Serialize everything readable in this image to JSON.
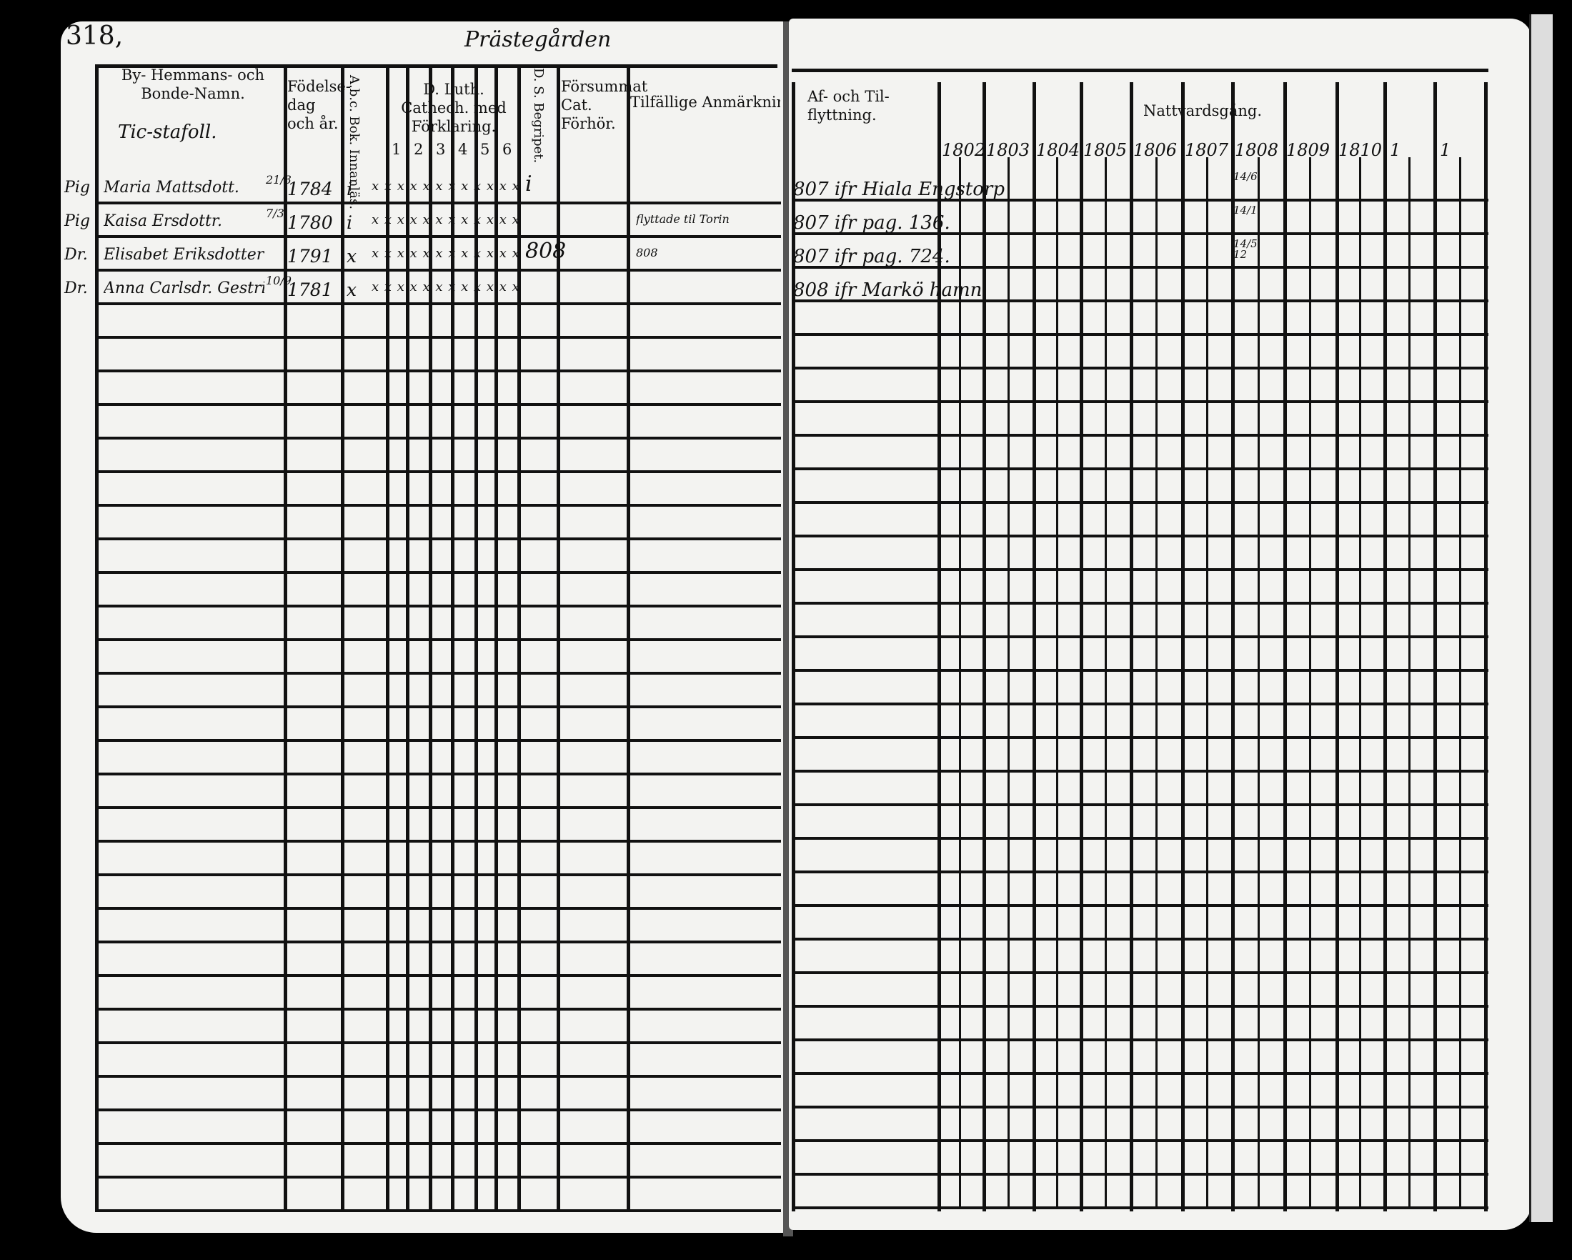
{
  "page_number": "318,",
  "place_heading": "Prästegården",
  "left": {
    "headers": {
      "name": "By- Hemmans- och Bonde-Namn.",
      "birth": "Födelse-dag och år.",
      "abc": "A.b.c. Bok. Innanläs.",
      "catech": "D. Luth. Cathech. med Förklaring.",
      "catech_cols": [
        "1",
        "2",
        "3",
        "4",
        "5",
        "6"
      ],
      "ds": "D. S. Begripet.",
      "missed": "Försummat Cat. Förhör.",
      "remarks": "Tilfällige Anmärkningar."
    },
    "farm_name": "Tic-stafoll.",
    "rows": [
      {
        "prefix": "Pig",
        "name": "Maria Mattsdott.",
        "day": "21/3",
        "year": "1784",
        "abc": "i",
        "marks": "x x x x x x x x x x x x",
        "ds": "i",
        "remarks": ""
      },
      {
        "prefix": "Pig",
        "name": "Kaisa Ersdottr.",
        "day": "7/3",
        "year": "1780",
        "abc": "i",
        "marks": "x x x x x x x x x x x x",
        "ds": "",
        "remarks": "flyttade til Torin"
      },
      {
        "prefix": "Dr.",
        "name": "Elisabet Eriksdotter",
        "day": "",
        "year": "1791",
        "abc": "x",
        "marks": "x x x x x x x x x x x x",
        "ds": "808",
        "remarks": "808"
      },
      {
        "prefix": "Dr.",
        "name": "Anna Carlsdr. Gestrin",
        "day": "10/9",
        "year": "1781",
        "abc": "x",
        "marks": "x x x x x x x x x x x x",
        "ds": "",
        "remarks": ""
      }
    ]
  },
  "right": {
    "headers": {
      "moves": "Af- och Til- flyttning.",
      "communion": "Nattvardsgång.",
      "years": [
        "1802",
        "1803",
        "1804",
        "1805",
        "1806",
        "1807",
        "1808",
        "1809",
        "1810",
        "1",
        "1"
      ]
    },
    "rows": [
      {
        "move": "807 ifr Hiala Engstorp",
        "c1808": "14/6"
      },
      {
        "move": "807 ifr pag. 136.",
        "c1808": "14/1"
      },
      {
        "move": "807 ifr pag. 724.",
        "c1808": "14/5 12"
      },
      {
        "move": "808 ifr Markö hamn"
      }
    ]
  }
}
